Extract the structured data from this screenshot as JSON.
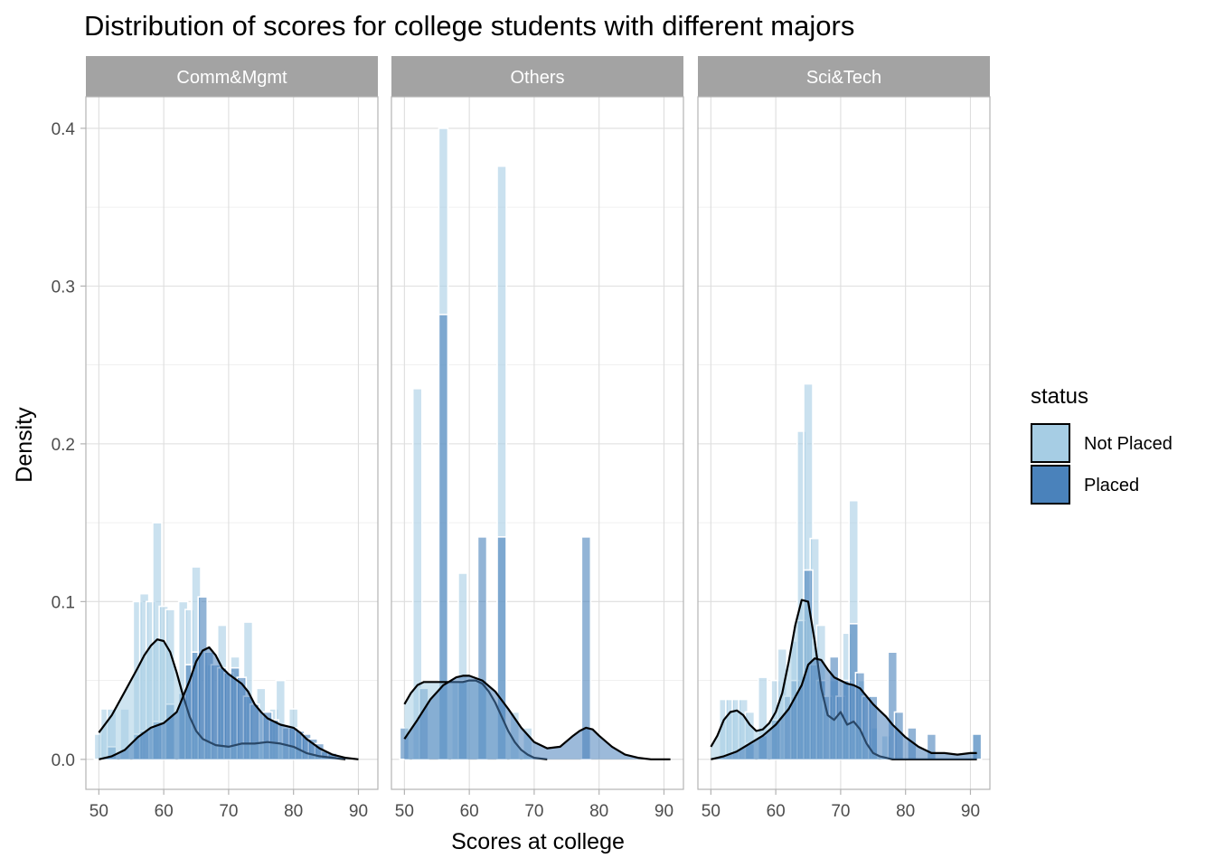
{
  "chart_data": {
    "type": "histogram-density",
    "title": "Distribution of scores for college students with different majors",
    "xlabel": "Scores at college",
    "ylabel": "Density",
    "xlim": [
      48,
      93
    ],
    "ylim": [
      -0.019,
      0.42
    ],
    "x_ticks": [
      50,
      60,
      70,
      80,
      90
    ],
    "y_ticks": [
      0.0,
      0.1,
      0.2,
      0.3,
      0.4
    ],
    "y_tick_labels": [
      "0.0",
      "0.1",
      "0.2",
      "0.3",
      "0.4"
    ],
    "bin_width": 1.4,
    "grid": true,
    "legend": {
      "title": "status",
      "position": "right",
      "items": [
        {
          "label": "Not Placed",
          "color": "#a6cde4"
        },
        {
          "label": "Placed",
          "color": "#4a82bb"
        }
      ]
    },
    "panels": [
      {
        "name": "Comm&Mgmt",
        "hist": {
          "Not Placed": [
            [
              50,
              0.016
            ],
            [
              51,
              0.032
            ],
            [
              52,
              0.032
            ],
            [
              54,
              0.032
            ],
            [
              56,
              0.1
            ],
            [
              57,
              0.105
            ],
            [
              58,
              0.1
            ],
            [
              59,
              0.15
            ],
            [
              60,
              0.097
            ],
            [
              61,
              0.095
            ],
            [
              63,
              0.1
            ],
            [
              64,
              0.095
            ],
            [
              65,
              0.122
            ],
            [
              67,
              0.06
            ],
            [
              69,
              0.085
            ],
            [
              71,
              0.065
            ],
            [
              73,
              0.087
            ],
            [
              75,
              0.045
            ],
            [
              77,
              0.032
            ],
            [
              78,
              0.05
            ],
            [
              80,
              0.032
            ],
            [
              81,
              0.016
            ]
          ],
          "Placed": [
            [
              52,
              0.008
            ],
            [
              56,
              0.016
            ],
            [
              57,
              0.018
            ],
            [
              59,
              0.024
            ],
            [
              61,
              0.035
            ],
            [
              63,
              0.042
            ],
            [
              64,
              0.06
            ],
            [
              65,
              0.068
            ],
            [
              66,
              0.103
            ],
            [
              67,
              0.068
            ],
            [
              68,
              0.06
            ],
            [
              69,
              0.058
            ],
            [
              70,
              0.055
            ],
            [
              71,
              0.058
            ],
            [
              72,
              0.052
            ],
            [
              73,
              0.04
            ],
            [
              74,
              0.035
            ],
            [
              76,
              0.03
            ],
            [
              77,
              0.025
            ],
            [
              79,
              0.02
            ],
            [
              80,
              0.02
            ],
            [
              81,
              0.018
            ],
            [
              82,
              0.016
            ],
            [
              83,
              0.013
            ],
            [
              84,
              0.01
            ],
            [
              85,
              0.005
            ],
            [
              86,
              0.004
            ]
          ]
        },
        "density": {
          "Not Placed": [
            [
              50,
              0.017
            ],
            [
              52,
              0.028
            ],
            [
              54,
              0.043
            ],
            [
              56,
              0.058
            ],
            [
              57,
              0.066
            ],
            [
              58,
              0.072
            ],
            [
              59,
              0.076
            ],
            [
              60,
              0.075
            ],
            [
              61,
              0.068
            ],
            [
              62,
              0.055
            ],
            [
              63,
              0.04
            ],
            [
              64,
              0.027
            ],
            [
              65,
              0.018
            ],
            [
              66,
              0.013
            ],
            [
              68,
              0.009
            ],
            [
              70,
              0.008
            ],
            [
              72,
              0.01
            ],
            [
              74,
              0.01
            ],
            [
              76,
              0.011
            ],
            [
              78,
              0.01
            ],
            [
              80,
              0.008
            ],
            [
              82,
              0.004
            ],
            [
              84,
              0.002
            ],
            [
              86,
              0.001
            ],
            [
              88,
              0.0
            ]
          ],
          "Placed": [
            [
              50,
              0.0
            ],
            [
              52,
              0.002
            ],
            [
              54,
              0.006
            ],
            [
              56,
              0.014
            ],
            [
              58,
              0.02
            ],
            [
              60,
              0.023
            ],
            [
              62,
              0.03
            ],
            [
              64,
              0.05
            ],
            [
              65,
              0.062
            ],
            [
              66,
              0.069
            ],
            [
              67,
              0.071
            ],
            [
              68,
              0.066
            ],
            [
              69,
              0.058
            ],
            [
              70,
              0.054
            ],
            [
              71,
              0.051
            ],
            [
              72,
              0.048
            ],
            [
              73,
              0.043
            ],
            [
              74,
              0.035
            ],
            [
              75,
              0.03
            ],
            [
              76,
              0.026
            ],
            [
              77,
              0.024
            ],
            [
              78,
              0.022
            ],
            [
              79,
              0.021
            ],
            [
              80,
              0.02
            ],
            [
              81,
              0.017
            ],
            [
              82,
              0.013
            ],
            [
              84,
              0.007
            ],
            [
              86,
              0.003
            ],
            [
              88,
              0.001
            ],
            [
              90,
              0.0
            ]
          ]
        }
      },
      {
        "name": "Others",
        "hist": {
          "Not Placed": [
            [
              52,
              0.235
            ],
            [
              56,
              0.4
            ],
            [
              58,
              0.05
            ],
            [
              59,
              0.118
            ],
            [
              62,
              0.05
            ],
            [
              65,
              0.376
            ],
            [
              67,
              0.03
            ],
            [
              69,
              0.02
            ]
          ],
          "Placed": [
            [
              50,
              0.02
            ],
            [
              53,
              0.045
            ],
            [
              56,
              0.282
            ],
            [
              59,
              0.05
            ],
            [
              62,
              0.141
            ],
            [
              65,
              0.141
            ],
            [
              78,
              0.141
            ]
          ]
        },
        "density": {
          "Not Placed": [
            [
              50,
              0.035
            ],
            [
              51,
              0.042
            ],
            [
              52,
              0.047
            ],
            [
              53,
              0.049
            ],
            [
              54,
              0.049
            ],
            [
              55,
              0.049
            ],
            [
              56,
              0.049
            ],
            [
              57,
              0.049
            ],
            [
              58,
              0.049
            ],
            [
              59,
              0.049
            ],
            [
              60,
              0.05
            ],
            [
              61,
              0.05
            ],
            [
              62,
              0.048
            ],
            [
              63,
              0.043
            ],
            [
              64,
              0.036
            ],
            [
              65,
              0.027
            ],
            [
              66,
              0.018
            ],
            [
              67,
              0.011
            ],
            [
              68,
              0.006
            ],
            [
              69,
              0.003
            ],
            [
              70,
              0.001
            ],
            [
              72,
              0.0
            ]
          ],
          "Placed": [
            [
              50,
              0.013
            ],
            [
              52,
              0.025
            ],
            [
              54,
              0.038
            ],
            [
              56,
              0.047
            ],
            [
              58,
              0.052
            ],
            [
              59,
              0.053
            ],
            [
              60,
              0.053
            ],
            [
              62,
              0.05
            ],
            [
              64,
              0.043
            ],
            [
              66,
              0.032
            ],
            [
              68,
              0.02
            ],
            [
              70,
              0.011
            ],
            [
              72,
              0.007
            ],
            [
              74,
              0.008
            ],
            [
              76,
              0.015
            ],
            [
              77,
              0.018
            ],
            [
              78,
              0.02
            ],
            [
              79,
              0.019
            ],
            [
              80,
              0.015
            ],
            [
              82,
              0.008
            ],
            [
              84,
              0.003
            ],
            [
              86,
              0.001
            ],
            [
              88,
              0.0
            ],
            [
              91,
              0.0
            ]
          ]
        }
      },
      {
        "name": "Sci&Tech",
        "hist": {
          "Not Placed": [
            [
              52,
              0.038
            ],
            [
              53,
              0.038
            ],
            [
              54,
              0.038
            ],
            [
              55,
              0.038
            ],
            [
              56,
              0.03
            ],
            [
              58,
              0.052
            ],
            [
              60,
              0.05
            ],
            [
              61,
              0.07
            ],
            [
              63,
              0.075
            ],
            [
              64,
              0.208
            ],
            [
              65,
              0.238
            ],
            [
              66,
              0.14
            ],
            [
              67,
              0.085
            ],
            [
              69,
              0.05
            ],
            [
              71,
              0.08
            ],
            [
              72,
              0.164
            ],
            [
              73,
              0.05
            ],
            [
              75,
              0.02
            ],
            [
              77,
              0.015
            ],
            [
              91,
              0.016
            ]
          ],
          "Placed": [
            [
              56,
              0.01
            ],
            [
              58,
              0.015
            ],
            [
              60,
              0.025
            ],
            [
              62,
              0.04
            ],
            [
              63,
              0.05
            ],
            [
              64,
              0.088
            ],
            [
              65,
              0.12
            ],
            [
              66,
              0.06
            ],
            [
              67,
              0.05
            ],
            [
              68,
              0.04
            ],
            [
              69,
              0.065
            ],
            [
              70,
              0.04
            ],
            [
              71,
              0.05
            ],
            [
              72,
              0.086
            ],
            [
              73,
              0.055
            ],
            [
              74,
              0.04
            ],
            [
              75,
              0.04
            ],
            [
              78,
              0.068
            ],
            [
              79,
              0.03
            ],
            [
              81,
              0.02
            ],
            [
              84,
              0.016
            ],
            [
              91,
              0.016
            ]
          ]
        },
        "density": {
          "Not Placed": [
            [
              50,
              0.008
            ],
            [
              51,
              0.015
            ],
            [
              52,
              0.025
            ],
            [
              53,
              0.03
            ],
            [
              54,
              0.031
            ],
            [
              55,
              0.028
            ],
            [
              56,
              0.022
            ],
            [
              57,
              0.018
            ],
            [
              58,
              0.019
            ],
            [
              59,
              0.023
            ],
            [
              60,
              0.03
            ],
            [
              61,
              0.042
            ],
            [
              62,
              0.062
            ],
            [
              63,
              0.085
            ],
            [
              64,
              0.101
            ],
            [
              65,
              0.1
            ],
            [
              66,
              0.075
            ],
            [
              67,
              0.045
            ],
            [
              68,
              0.028
            ],
            [
              69,
              0.025
            ],
            [
              70,
              0.03
            ],
            [
              71,
              0.022
            ],
            [
              72,
              0.024
            ],
            [
              73,
              0.019
            ],
            [
              74,
              0.01
            ],
            [
              75,
              0.004
            ],
            [
              76,
              0.002
            ],
            [
              78,
              0.0
            ],
            [
              80,
              0.0
            ],
            [
              84,
              0.0
            ],
            [
              88,
              0.0
            ],
            [
              91,
              0.0
            ]
          ],
          "Placed": [
            [
              50,
              0.0
            ],
            [
              52,
              0.002
            ],
            [
              54,
              0.005
            ],
            [
              56,
              0.01
            ],
            [
              58,
              0.015
            ],
            [
              60,
              0.022
            ],
            [
              62,
              0.032
            ],
            [
              64,
              0.047
            ],
            [
              65,
              0.06
            ],
            [
              66,
              0.064
            ],
            [
              67,
              0.063
            ],
            [
              68,
              0.057
            ],
            [
              69,
              0.052
            ],
            [
              70,
              0.05
            ],
            [
              71,
              0.048
            ],
            [
              72,
              0.047
            ],
            [
              73,
              0.045
            ],
            [
              74,
              0.04
            ],
            [
              75,
              0.035
            ],
            [
              76,
              0.031
            ],
            [
              77,
              0.027
            ],
            [
              78,
              0.022
            ],
            [
              79,
              0.018
            ],
            [
              80,
              0.014
            ],
            [
              82,
              0.008
            ],
            [
              84,
              0.004
            ],
            [
              86,
              0.004
            ],
            [
              88,
              0.003
            ],
            [
              90,
              0.004
            ],
            [
              91,
              0.004
            ]
          ]
        }
      }
    ]
  }
}
